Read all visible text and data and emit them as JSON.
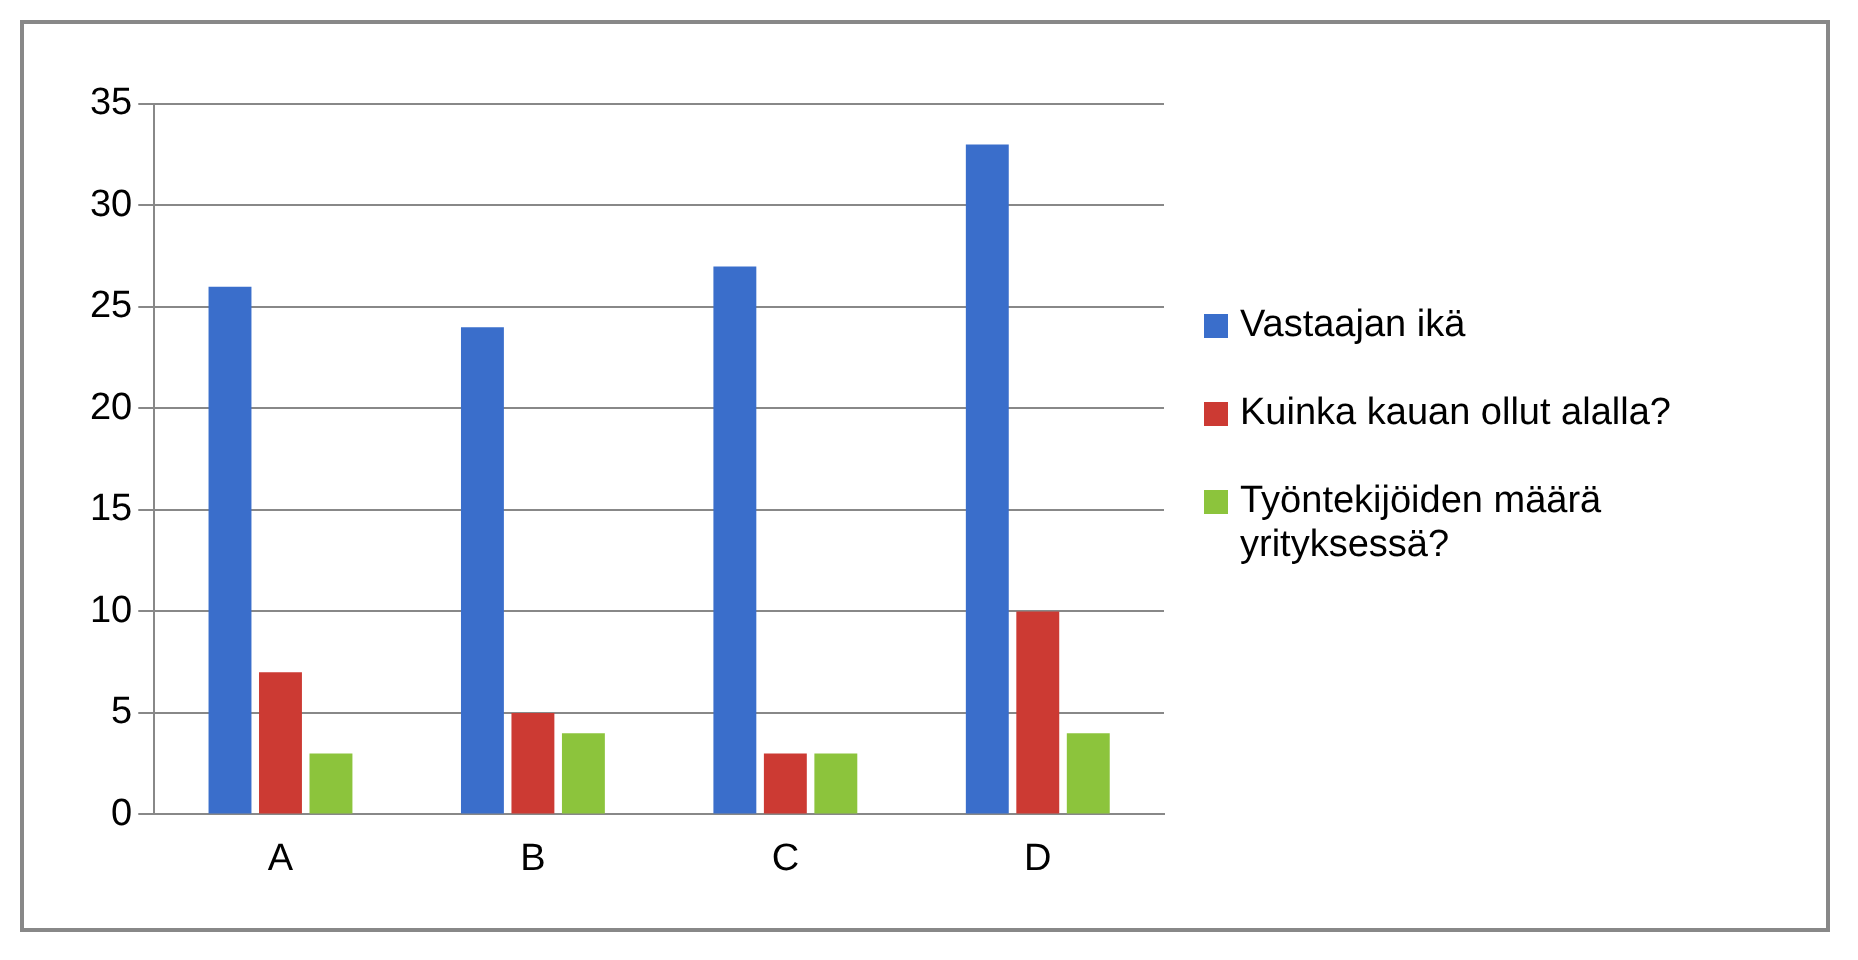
{
  "chart_data": {
    "type": "bar",
    "categories": [
      "A",
      "B",
      "C",
      "D"
    ],
    "series": [
      {
        "name": "Vastaajan ikä",
        "color": "#3a6ecb",
        "values": [
          26,
          24,
          27,
          33
        ]
      },
      {
        "name": "Kuinka kauan ollut alalla?",
        "color": "#cc3a33",
        "values": [
          7,
          5,
          3,
          10
        ]
      },
      {
        "name": "Työntekijöiden määrä yrityksessä?",
        "color": "#8cc43c",
        "values": [
          3,
          4,
          3,
          4
        ]
      }
    ],
    "ylim": [
      0,
      35
    ],
    "yticks": [
      0,
      5,
      10,
      15,
      20,
      25,
      30,
      35
    ],
    "grid": "y",
    "legend": "right"
  }
}
